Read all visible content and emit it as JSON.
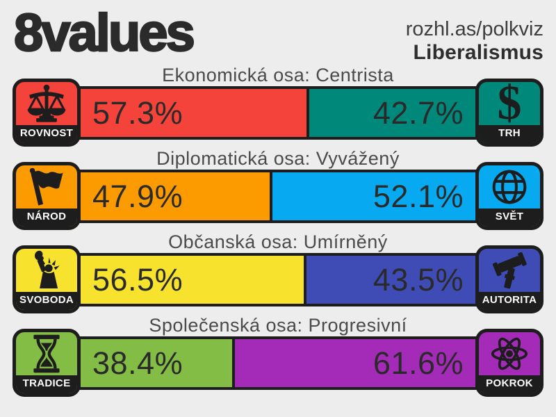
{
  "header": {
    "title": "8values",
    "site": "rozhl.as/polkviz",
    "result_label": "Liberalismus"
  },
  "icons": {
    "dollar_glyph": "$"
  },
  "colors": {
    "background": "#ededed",
    "outline_black": "#1d1d1d",
    "heading_gray": "#4a4a4a",
    "text_dark": "#2a2a2a"
  },
  "chart_data": {
    "type": "bar",
    "title": "8values — Liberalismus",
    "orientation": "horizontal-stacked-percent",
    "axes": [
      {
        "heading": "Ekonomická osa: Centrista",
        "left": {
          "label": "ROVNOST",
          "value": 57.3,
          "display": "57.3%",
          "color": "#f3433a",
          "icon": "scales-icon"
        },
        "right": {
          "label": "TRH",
          "value": 42.7,
          "display": "42.7%",
          "color": "#00897b",
          "icon": "dollar-icon"
        }
      },
      {
        "heading": "Diplomatická osa: Vyvážený",
        "left": {
          "label": "NÁROD",
          "value": 47.9,
          "display": "47.9%",
          "color": "#fb9b00",
          "icon": "flag-icon"
        },
        "right": {
          "label": "SVĚT",
          "value": 52.1,
          "display": "52.1%",
          "color": "#07a9f0",
          "icon": "globe-icon"
        }
      },
      {
        "heading": "Občanská osa: Umírněný",
        "left": {
          "label": "SVOBODA",
          "value": 56.5,
          "display": "56.5%",
          "color": "#f7e32d",
          "icon": "liberty-icon"
        },
        "right": {
          "label": "AUTORITA",
          "value": 43.5,
          "display": "43.5%",
          "color": "#3f4cb5",
          "icon": "gavel-icon"
        }
      },
      {
        "heading": "Společenská osa: Progresivní",
        "left": {
          "label": "TRADICE",
          "value": 38.4,
          "display": "38.4%",
          "color": "#83bd46",
          "icon": "hourglass-icon"
        },
        "right": {
          "label": "POKROK",
          "value": 61.6,
          "display": "61.6%",
          "color": "#a32bb8",
          "icon": "atom-icon"
        }
      }
    ]
  }
}
